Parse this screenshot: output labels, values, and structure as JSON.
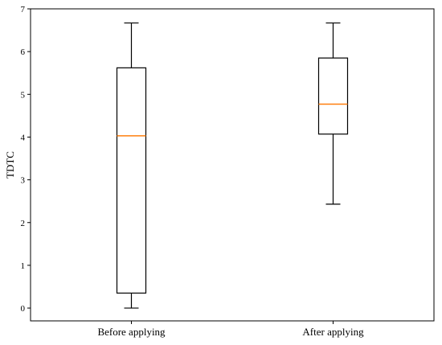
{
  "chart_data": {
    "type": "boxplot",
    "title": "",
    "xlabel": "",
    "ylabel": "TDTC",
    "categories": [
      "Before applying",
      "After applying"
    ],
    "ylim": [
      -0.3,
      7
    ],
    "yticks": [
      "0",
      "1",
      "2",
      "3",
      "4",
      "5",
      "6",
      "7"
    ],
    "grid": false,
    "boxes": [
      {
        "category": "Before applying",
        "whisker_low": 0.0,
        "q1": 0.35,
        "median": 4.03,
        "q3": 5.62,
        "whisker_high": 6.67
      },
      {
        "category": "After applying",
        "whisker_low": 2.43,
        "q1": 4.07,
        "median": 4.77,
        "q3": 5.85,
        "whisker_high": 6.67
      }
    ],
    "colors": {
      "box": "#000000",
      "median": "#ff7f0e",
      "axis": "#000000",
      "background": "#ffffff"
    }
  }
}
